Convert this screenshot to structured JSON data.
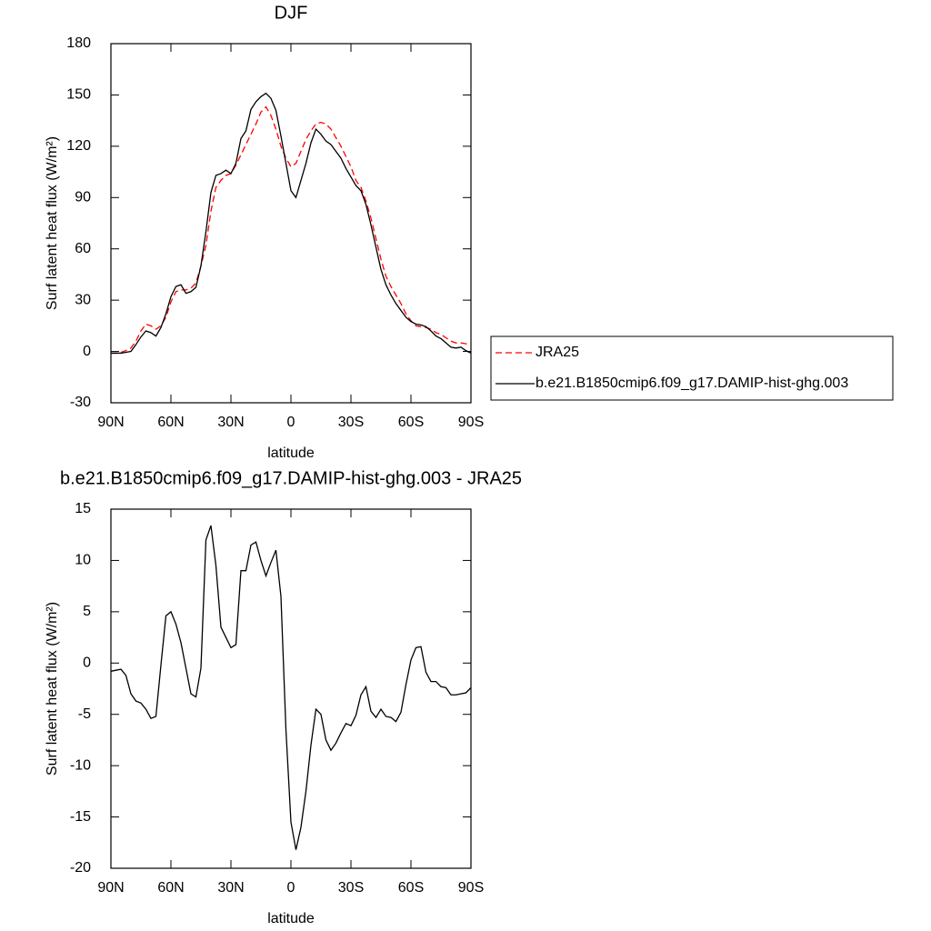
{
  "chart_data": [
    {
      "type": "line",
      "title": "DJF",
      "x_label": "latitude",
      "y_label": "Surf latent heat flux (W/m²)",
      "x": [
        90,
        87.5,
        85,
        82.5,
        80,
        77.5,
        75,
        72.5,
        70,
        67.5,
        65,
        62.5,
        60,
        57.5,
        55,
        52.5,
        50,
        47.5,
        45,
        42.5,
        40,
        37.5,
        35,
        32.5,
        30,
        27.5,
        25,
        22.5,
        20,
        17.5,
        15,
        12.5,
        10,
        7.5,
        5,
        2.5,
        0,
        -2.5,
        -5,
        -7.5,
        -10,
        -12.5,
        -15,
        -17.5,
        -20,
        -22.5,
        -25,
        -27.5,
        -30,
        -32.5,
        -35,
        -37.5,
        -40,
        -42.5,
        -45,
        -47.5,
        -50,
        -52.5,
        -55,
        -57.5,
        -60,
        -62.5,
        -65,
        -67.5,
        -70,
        -72.5,
        -75,
        -77.5,
        -80,
        -82.5,
        -85,
        -87.5,
        -90
      ],
      "xlim": [
        90,
        -90
      ],
      "xticks": [
        {
          "value": 90,
          "label": "90N"
        },
        {
          "value": 60,
          "label": "60N"
        },
        {
          "value": 30,
          "label": "30N"
        },
        0,
        {
          "value": -30,
          "label": "30S"
        },
        {
          "value": -60,
          "label": "60S"
        },
        {
          "value": -90,
          "label": "90S"
        }
      ],
      "ylim": [
        -30,
        180
      ],
      "yticks": [
        -30,
        0,
        30,
        60,
        90,
        120,
        150,
        180
      ],
      "legend": "right",
      "series": [
        {
          "name": "JRA25",
          "color": "#ff0000",
          "line_style": "dashed",
          "values": [
            -1,
            -1,
            -0.5,
            0.5,
            2,
            6,
            12,
            16,
            15,
            13,
            15,
            20,
            29,
            35,
            36,
            36,
            37,
            40,
            50,
            62,
            82,
            96,
            100,
            103,
            104,
            109,
            115,
            121,
            127,
            133,
            140,
            143,
            138,
            130,
            120,
            113,
            108,
            110,
            117,
            124,
            129,
            133,
            134,
            133,
            130,
            125,
            120,
            114,
            108,
            100,
            96,
            88,
            78,
            66,
            54,
            44,
            38,
            33,
            28,
            22,
            18,
            15,
            14.5,
            14,
            13,
            11,
            10,
            8,
            6,
            5,
            5,
            4.5,
            4.5
          ]
        },
        {
          "name": "b.e21.B1850cmip6.f09_g17.DAMIP-hist-ghg.003",
          "color": "#000000",
          "line_style": "solid",
          "values": [
            -1,
            -1,
            -1,
            -0.5,
            0,
            4,
            8.5,
            12,
            11,
            9,
            14,
            22,
            32,
            38,
            39,
            34,
            35,
            37.5,
            50,
            70,
            93,
            103,
            104,
            106,
            104,
            110,
            124.5,
            129,
            141.5,
            146,
            149,
            151,
            148,
            141,
            126,
            110,
            94,
            90,
            100,
            110,
            122,
            130,
            127,
            123,
            121,
            117,
            113,
            107,
            102,
            97,
            94,
            86,
            74,
            61,
            48,
            39,
            33,
            28,
            24,
            20,
            17.5,
            16,
            15.5,
            14.5,
            12,
            9,
            7.5,
            5,
            2.5,
            2,
            2.5,
            0.5,
            -1
          ]
        }
      ]
    },
    {
      "type": "line",
      "title": "b.e21.B1850cmip6.f09_g17.DAMIP-hist-ghg.003 - JRA25",
      "x_label": "latitude",
      "y_label": "Surf latent heat flux (W/m²)",
      "x": [
        90,
        87.5,
        85,
        82.5,
        80,
        77.5,
        75,
        72.5,
        70,
        67.5,
        65,
        62.5,
        60,
        57.5,
        55,
        52.5,
        50,
        47.5,
        45,
        42.5,
        40,
        37.5,
        35,
        32.5,
        30,
        27.5,
        25,
        22.5,
        20,
        17.5,
        15,
        12.5,
        10,
        7.5,
        5,
        2.5,
        0,
        -2.5,
        -5,
        -7.5,
        -10,
        -12.5,
        -15,
        -17.5,
        -20,
        -22.5,
        -25,
        -27.5,
        -30,
        -32.5,
        -35,
        -37.5,
        -40,
        -42.5,
        -45,
        -47.5,
        -50,
        -52.5,
        -55,
        -57.5,
        -60,
        -62.5,
        -65,
        -67.5,
        -70,
        -72.5,
        -75,
        -77.5,
        -80,
        -82.5,
        -85,
        -87.5,
        -90
      ],
      "xlim": [
        90,
        -90
      ],
      "xticks": [
        {
          "value": 90,
          "label": "90N"
        },
        {
          "value": 60,
          "label": "60N"
        },
        {
          "value": 30,
          "label": "30N"
        },
        0,
        {
          "value": -30,
          "label": "30S"
        },
        {
          "value": -60,
          "label": "60S"
        },
        {
          "value": -90,
          "label": "90S"
        }
      ],
      "ylim": [
        -20,
        15
      ],
      "yticks": [
        -20,
        -15,
        -10,
        -5,
        0,
        5,
        10,
        15
      ],
      "series": [
        {
          "color": "#000000",
          "line_style": "solid",
          "values": [
            -0.8,
            -0.7,
            -0.6,
            -1.2,
            -3,
            -3.7,
            -3.9,
            -4.5,
            -5.4,
            -5.2,
            -0.2,
            4.6,
            5,
            3.8,
            2,
            -0.5,
            -3,
            -3.3,
            -0.5,
            12,
            13.4,
            9.5,
            3.5,
            2.5,
            1.5,
            1.8,
            9,
            9,
            11.5,
            11.8,
            10,
            8.5,
            9.8,
            11,
            6.5,
            -6.5,
            -15.5,
            -18.2,
            -16,
            -12.5,
            -8,
            -4.5,
            -5,
            -7.5,
            -8.5,
            -7.8,
            -6.8,
            -5.9,
            -6.1,
            -5.1,
            -3.1,
            -2.3,
            -4.7,
            -5.3,
            -4.5,
            -5.2,
            -5.3,
            -5.7,
            -4.8,
            -2.1,
            0.3,
            1.5,
            1.6,
            -0.9,
            -1.8,
            -1.8,
            -2.3,
            -2.4,
            -3.1,
            -3.1,
            -3,
            -2.9,
            -2.4
          ]
        }
      ]
    }
  ]
}
